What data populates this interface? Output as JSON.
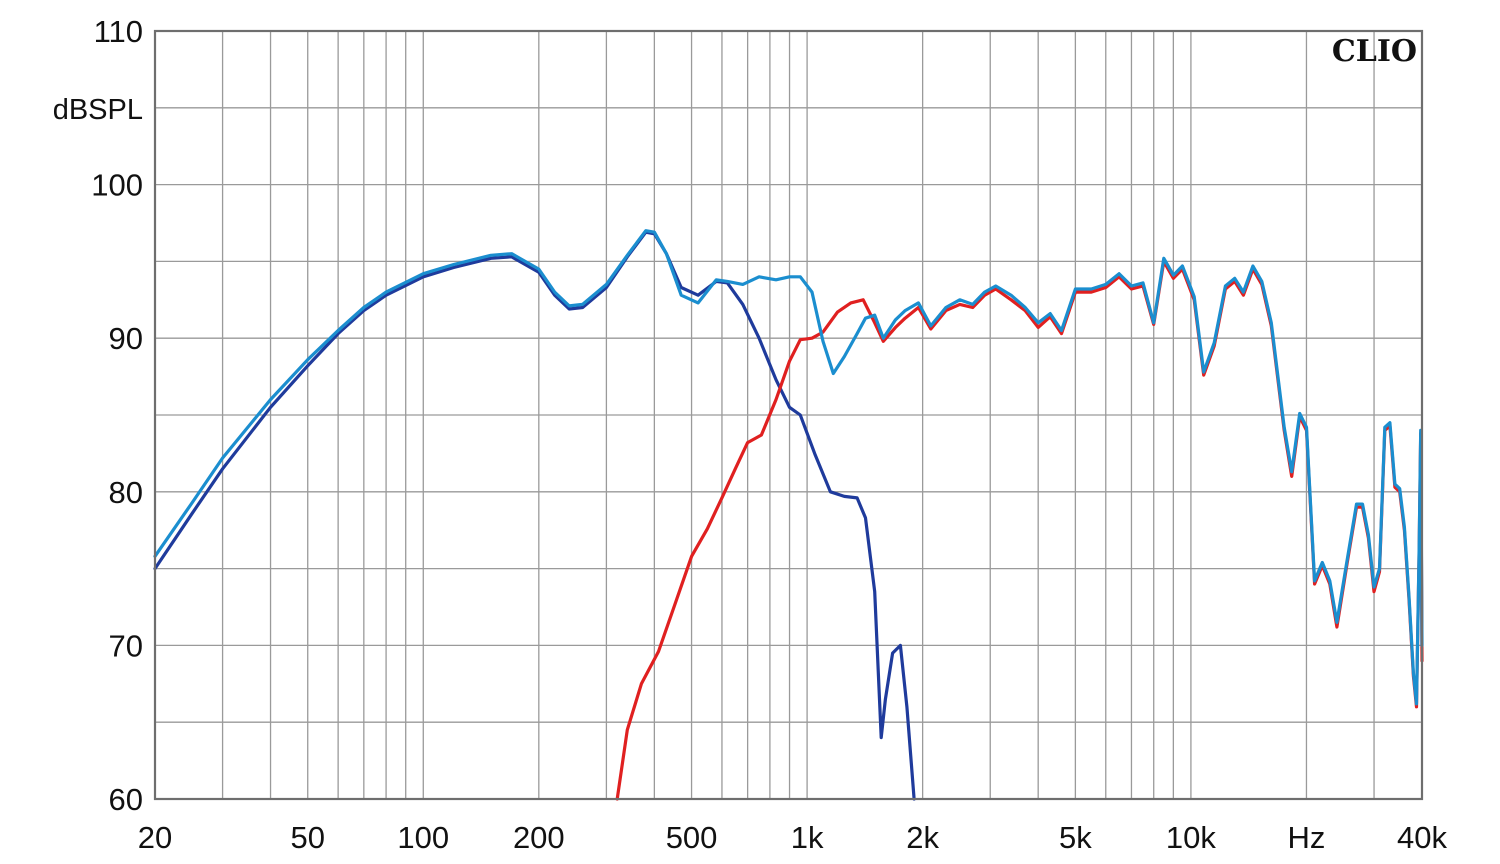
{
  "chart_data": {
    "type": "line",
    "title": "",
    "xlabel": "Hz",
    "ylabel": "dBSPL",
    "x_scale": "log",
    "xlim": [
      20,
      40000
    ],
    "ylim": [
      60,
      110
    ],
    "grid": true,
    "x_tick_labels": [
      {
        "value": 20,
        "label": "20"
      },
      {
        "value": 50,
        "label": "50"
      },
      {
        "value": 100,
        "label": "100"
      },
      {
        "value": 200,
        "label": "200"
      },
      {
        "value": 500,
        "label": "500"
      },
      {
        "value": 1000,
        "label": "1k"
      },
      {
        "value": 2000,
        "label": "2k"
      },
      {
        "value": 5000,
        "label": "5k"
      },
      {
        "value": 10000,
        "label": "10k"
      },
      {
        "value": 40000,
        "label": "40k"
      }
    ],
    "x_unit_label": {
      "value": 20000,
      "label": "Hz"
    },
    "y_tick_labels": [
      {
        "value": 60,
        "label": "60"
      },
      {
        "value": 70,
        "label": "70"
      },
      {
        "value": 80,
        "label": "80"
      },
      {
        "value": 90,
        "label": "90"
      },
      {
        "value": 100,
        "label": "100"
      },
      {
        "value": 110,
        "label": "110"
      }
    ],
    "y_unit_label": "dBSPL",
    "watermark": "CLIO",
    "series": [
      {
        "color": "#1f3b9c",
        "points": [
          [
            20,
            75
          ],
          [
            25,
            78.6
          ],
          [
            30,
            81.5
          ],
          [
            40,
            85.5
          ],
          [
            50,
            88.2
          ],
          [
            60,
            90.3
          ],
          [
            70,
            91.8
          ],
          [
            80,
            92.8
          ],
          [
            100,
            94
          ],
          [
            120,
            94.6
          ],
          [
            150,
            95.2
          ],
          [
            170,
            95.3
          ],
          [
            200,
            94.3
          ],
          [
            220,
            92.8
          ],
          [
            240,
            91.9
          ],
          [
            260,
            92
          ],
          [
            300,
            93.3
          ],
          [
            340,
            95.3
          ],
          [
            380,
            96.9
          ],
          [
            400,
            96.8
          ],
          [
            430,
            95.5
          ],
          [
            470,
            93.3
          ],
          [
            520,
            92.8
          ],
          [
            580,
            93.7
          ],
          [
            620,
            93.6
          ],
          [
            680,
            92.2
          ],
          [
            750,
            90
          ],
          [
            830,
            87.3
          ],
          [
            900,
            85.5
          ],
          [
            960,
            85
          ],
          [
            1050,
            82.4
          ],
          [
            1150,
            80
          ],
          [
            1250,
            79.7
          ],
          [
            1350,
            79.6
          ],
          [
            1420,
            78.3
          ],
          [
            1500,
            73.5
          ],
          [
            1560,
            64
          ],
          [
            1600,
            66.5
          ],
          [
            1670,
            69.5
          ],
          [
            1750,
            70
          ],
          [
            1820,
            66
          ],
          [
            1900,
            60
          ]
        ]
      },
      {
        "color": "#e02020",
        "points": [
          [
            320,
            60
          ],
          [
            340,
            64.5
          ],
          [
            370,
            67.5
          ],
          [
            410,
            69.6
          ],
          [
            450,
            72.5
          ],
          [
            500,
            75.8
          ],
          [
            550,
            77.6
          ],
          [
            600,
            79.6
          ],
          [
            650,
            81.5
          ],
          [
            700,
            83.2
          ],
          [
            760,
            83.7
          ],
          [
            830,
            86
          ],
          [
            900,
            88.5
          ],
          [
            960,
            89.9
          ],
          [
            1030,
            90
          ],
          [
            1100,
            90.4
          ],
          [
            1200,
            91.7
          ],
          [
            1300,
            92.3
          ],
          [
            1400,
            92.5
          ],
          [
            1500,
            91
          ],
          [
            1580,
            89.8
          ],
          [
            1700,
            90.7
          ],
          [
            1800,
            91.3
          ],
          [
            1950,
            92
          ],
          [
            2100,
            90.6
          ],
          [
            2300,
            91.8
          ],
          [
            2500,
            92.2
          ],
          [
            2700,
            92
          ],
          [
            2900,
            92.8
          ],
          [
            3100,
            93.2
          ],
          [
            3400,
            92.5
          ],
          [
            3700,
            91.8
          ],
          [
            4000,
            90.7
          ],
          [
            4300,
            91.4
          ],
          [
            4600,
            90.3
          ],
          [
            5000,
            93
          ],
          [
            5500,
            93
          ],
          [
            6000,
            93.3
          ],
          [
            6500,
            94
          ],
          [
            7000,
            93.2
          ],
          [
            7500,
            93.4
          ],
          [
            8000,
            90.9
          ],
          [
            8500,
            95
          ],
          [
            9000,
            93.9
          ],
          [
            9500,
            94.5
          ],
          [
            10200,
            92.5
          ],
          [
            10800,
            87.6
          ],
          [
            11500,
            89.5
          ],
          [
            12300,
            93.2
          ],
          [
            13000,
            93.7
          ],
          [
            13700,
            92.8
          ],
          [
            14500,
            94.5
          ],
          [
            15300,
            93.5
          ],
          [
            16200,
            90.8
          ],
          [
            17500,
            84
          ],
          [
            18300,
            81
          ],
          [
            19200,
            84.9
          ],
          [
            20000,
            84
          ],
          [
            21000,
            74
          ],
          [
            22000,
            75.2
          ],
          [
            23000,
            74
          ],
          [
            24000,
            71.2
          ],
          [
            25500,
            75.3
          ],
          [
            27000,
            79
          ],
          [
            28000,
            79
          ],
          [
            29000,
            77
          ],
          [
            30000,
            73.5
          ],
          [
            31000,
            74.8
          ],
          [
            32000,
            84
          ],
          [
            33000,
            84.3
          ],
          [
            34000,
            80.3
          ],
          [
            35000,
            80
          ],
          [
            36000,
            77.5
          ],
          [
            37000,
            73
          ],
          [
            38000,
            68
          ],
          [
            38700,
            66
          ],
          [
            39300,
            76
          ],
          [
            39700,
            83.8
          ],
          [
            40000,
            69
          ]
        ]
      },
      {
        "color": "#1b8ecf",
        "points": [
          [
            20,
            75.8
          ],
          [
            25,
            79.3
          ],
          [
            30,
            82.2
          ],
          [
            40,
            86
          ],
          [
            50,
            88.6
          ],
          [
            60,
            90.5
          ],
          [
            70,
            92
          ],
          [
            80,
            93
          ],
          [
            100,
            94.2
          ],
          [
            120,
            94.8
          ],
          [
            150,
            95.4
          ],
          [
            170,
            95.5
          ],
          [
            200,
            94.5
          ],
          [
            220,
            93
          ],
          [
            240,
            92.1
          ],
          [
            260,
            92.2
          ],
          [
            300,
            93.5
          ],
          [
            340,
            95.4
          ],
          [
            380,
            97
          ],
          [
            400,
            96.9
          ],
          [
            430,
            95.5
          ],
          [
            470,
            92.8
          ],
          [
            520,
            92.3
          ],
          [
            580,
            93.8
          ],
          [
            620,
            93.7
          ],
          [
            680,
            93.5
          ],
          [
            750,
            94
          ],
          [
            830,
            93.8
          ],
          [
            900,
            94
          ],
          [
            960,
            94
          ],
          [
            1030,
            93
          ],
          [
            1100,
            89.8
          ],
          [
            1170,
            87.7
          ],
          [
            1250,
            88.8
          ],
          [
            1350,
            90.3
          ],
          [
            1420,
            91.3
          ],
          [
            1500,
            91.5
          ],
          [
            1580,
            90
          ],
          [
            1700,
            91.2
          ],
          [
            1800,
            91.8
          ],
          [
            1950,
            92.3
          ],
          [
            2100,
            90.8
          ],
          [
            2300,
            92
          ],
          [
            2500,
            92.5
          ],
          [
            2700,
            92.2
          ],
          [
            2900,
            93
          ],
          [
            3100,
            93.4
          ],
          [
            3400,
            92.8
          ],
          [
            3700,
            92
          ],
          [
            4000,
            91
          ],
          [
            4300,
            91.6
          ],
          [
            4600,
            90.5
          ],
          [
            5000,
            93.2
          ],
          [
            5500,
            93.2
          ],
          [
            6000,
            93.5
          ],
          [
            6500,
            94.2
          ],
          [
            7000,
            93.4
          ],
          [
            7500,
            93.6
          ],
          [
            8000,
            91
          ],
          [
            8500,
            95.2
          ],
          [
            9000,
            94.1
          ],
          [
            9500,
            94.7
          ],
          [
            10200,
            92.7
          ],
          [
            10800,
            87.8
          ],
          [
            11500,
            89.7
          ],
          [
            12300,
            93.4
          ],
          [
            13000,
            93.9
          ],
          [
            13700,
            93
          ],
          [
            14500,
            94.7
          ],
          [
            15300,
            93.7
          ],
          [
            16200,
            91
          ],
          [
            17500,
            84.2
          ],
          [
            18300,
            81.3
          ],
          [
            19200,
            85.1
          ],
          [
            20000,
            84.2
          ],
          [
            21000,
            74.2
          ],
          [
            22000,
            75.4
          ],
          [
            23000,
            74.2
          ],
          [
            24000,
            71.5
          ],
          [
            25500,
            75.5
          ],
          [
            27000,
            79.2
          ],
          [
            28000,
            79.2
          ],
          [
            29000,
            77.2
          ],
          [
            30000,
            73.8
          ],
          [
            31000,
            75
          ],
          [
            32000,
            84.2
          ],
          [
            33000,
            84.5
          ],
          [
            34000,
            80.5
          ],
          [
            35000,
            80.2
          ],
          [
            36000,
            77.7
          ],
          [
            37000,
            73.2
          ],
          [
            38000,
            68.2
          ],
          [
            38700,
            66.2
          ],
          [
            39300,
            76.2
          ],
          [
            39700,
            84
          ],
          [
            40000,
            70
          ]
        ]
      }
    ]
  }
}
